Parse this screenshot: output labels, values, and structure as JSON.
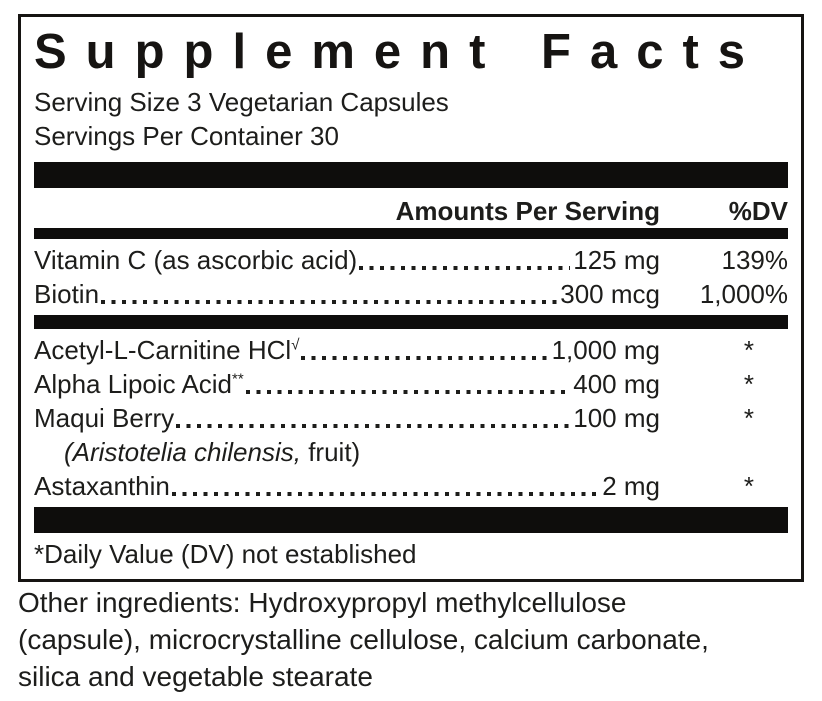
{
  "label": {
    "title": "Supplement Facts",
    "serving_size": "Serving Size 3 Vegetarian Capsules",
    "servings_per_container": "Servings Per Container 30",
    "columns": {
      "amount_header": "Amounts Per Serving",
      "dv_header": "%DV"
    },
    "sections": [
      {
        "rows": [
          {
            "name": "Vitamin C (as ascorbic acid)",
            "amount": "125 mg",
            "dv": "139%"
          },
          {
            "name": "Biotin ",
            "amount": "300 mcg",
            "dv": "1,000%"
          }
        ]
      },
      {
        "rows": [
          {
            "name": "Acetyl-L-Carnitine HCl",
            "sup": "√",
            "amount": "1,000 mg",
            "dv": "*"
          },
          {
            "name": "Alpha Lipoic Acid",
            "sup": "**",
            "amount": "400 mg",
            "dv": "*"
          },
          {
            "name": "Maqui Berry",
            "amount": "100 mg",
            "dv": "*"
          },
          {
            "italic": "(Aristotelia chilensis,",
            "regular": " fruit)"
          },
          {
            "name": "Astaxanthin",
            "amount": "2 mg",
            "dv": "*"
          }
        ]
      }
    ],
    "footnote": "*Daily Value (DV) not established",
    "other_ingredients_lines": [
      "Other ingredients: Hydroxypropyl methylcellulose",
      "(capsule), microcrystalline cellulose, calcium carbonate,",
      "silica and vegetable stearate"
    ]
  }
}
